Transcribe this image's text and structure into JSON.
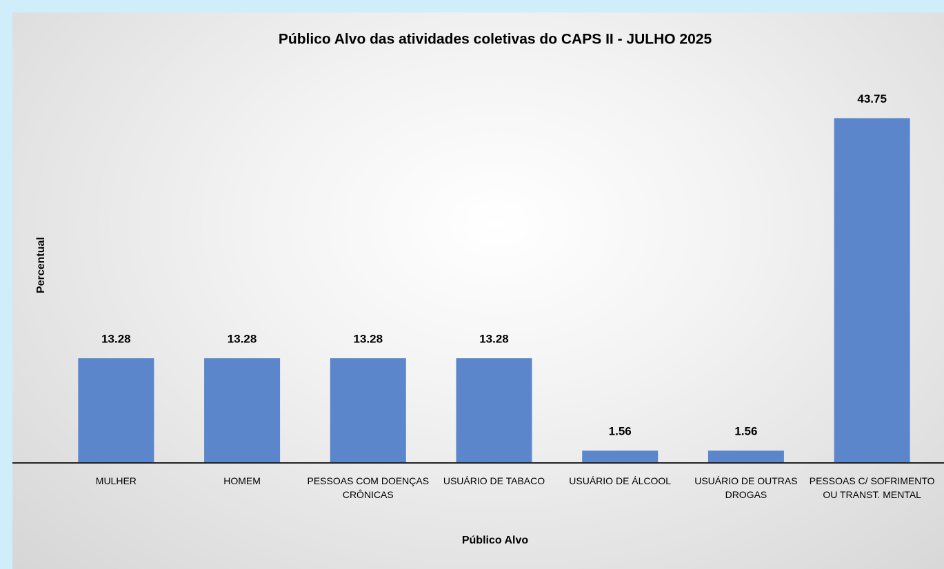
{
  "chart_data": {
    "type": "bar",
    "title": "Público Alvo das atividades coletivas do CAPS II - JULHO 2025",
    "x_label": "Público Alvo",
    "y_label": "Percentual",
    "categories": [
      "MULHER",
      "HOMEM",
      "PESSOAS COM DOENÇAS CRÔNICAS",
      "USUÁRIO DE TABACO",
      "USUÁRIO DE ÁLCOOL",
      "USUÁRIO DE OUTRAS DROGAS",
      "PESSOAS C/ SOFRIMENTO OU TRANST. MENTAL"
    ],
    "values": [
      13.28,
      13.28,
      13.28,
      13.28,
      1.56,
      1.56,
      43.75
    ],
    "color": "#5b86cc",
    "ylim": [
      0,
      50
    ]
  }
}
